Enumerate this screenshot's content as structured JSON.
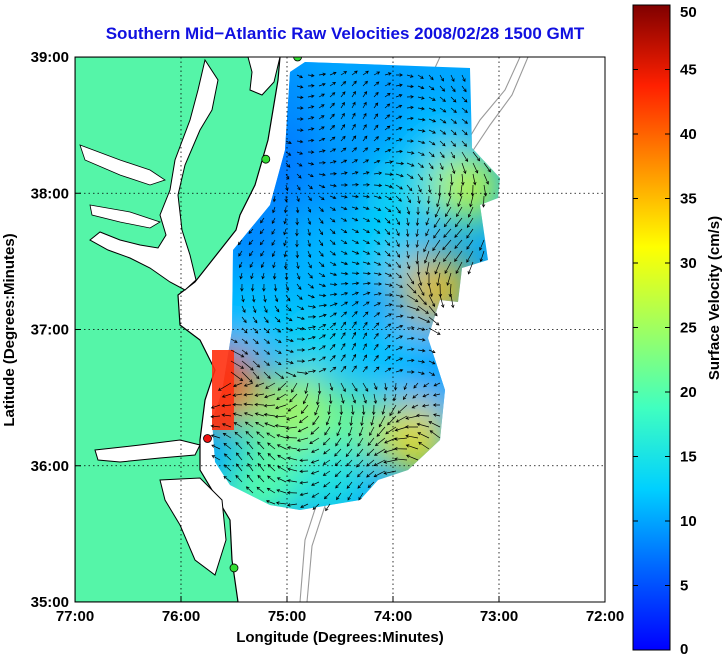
{
  "chart_data": {
    "type": "heatmap",
    "title": "Southern Mid−Atlantic Raw Velocities 2008/02/28 1500 GMT",
    "xlabel": "Longitude (Degrees:Minutes)",
    "ylabel": "Latitude (Degrees:Minutes)",
    "xlim": [
      -77,
      -72
    ],
    "ylim": [
      35,
      39
    ],
    "x_ticks": [
      {
        "value": -77,
        "label": "77:00"
      },
      {
        "value": -76,
        "label": "76:00"
      },
      {
        "value": -75,
        "label": "75:00"
      },
      {
        "value": -74,
        "label": "74:00"
      },
      {
        "value": -73,
        "label": "73:00"
      },
      {
        "value": -72,
        "label": "72:00"
      }
    ],
    "y_ticks": [
      {
        "value": 35,
        "label": "35:00"
      },
      {
        "value": 36,
        "label": "36:00"
      },
      {
        "value": 37,
        "label": "37:00"
      },
      {
        "value": 38,
        "label": "38:00"
      },
      {
        "value": 39,
        "label": "39:00"
      }
    ],
    "grid": true,
    "colorbar": {
      "label": "Surface Velocity (cm/s)",
      "range": [
        0,
        50
      ],
      "ticks": [
        {
          "value": 0,
          "label": "0"
        },
        {
          "value": 5,
          "label": "5"
        },
        {
          "value": 10,
          "label": "10"
        },
        {
          "value": 15,
          "label": "15"
        },
        {
          "value": 20,
          "label": "20"
        },
        {
          "value": 25,
          "label": "25"
        },
        {
          "value": 30,
          "label": "30"
        },
        {
          "value": 35,
          "label": "35"
        },
        {
          "value": 40,
          "label": "40"
        },
        {
          "value": 45,
          "label": "45"
        },
        {
          "value": 50,
          "label": "50"
        }
      ]
    },
    "velocity_field": [
      {
        "lon": -74.9,
        "lat": 38.7,
        "speed": 8
      },
      {
        "lon": -74.5,
        "lat": 38.8,
        "speed": 10
      },
      {
        "lon": -74.0,
        "lat": 38.6,
        "speed": 9
      },
      {
        "lon": -73.6,
        "lat": 38.4,
        "speed": 12
      },
      {
        "lon": -75.0,
        "lat": 38.2,
        "speed": 7
      },
      {
        "lon": -74.5,
        "lat": 38.1,
        "speed": 9
      },
      {
        "lon": -73.9,
        "lat": 38.0,
        "speed": 14
      },
      {
        "lon": -73.3,
        "lat": 38.05,
        "speed": 28
      },
      {
        "lon": -75.3,
        "lat": 37.7,
        "speed": 8
      },
      {
        "lon": -74.7,
        "lat": 37.5,
        "speed": 11
      },
      {
        "lon": -74.1,
        "lat": 37.6,
        "speed": 13
      },
      {
        "lon": -73.6,
        "lat": 37.3,
        "speed": 35
      },
      {
        "lon": -75.3,
        "lat": 37.1,
        "speed": 12
      },
      {
        "lon": -74.7,
        "lat": 36.9,
        "speed": 14
      },
      {
        "lon": -74.0,
        "lat": 36.8,
        "speed": 12
      },
      {
        "lon": -73.6,
        "lat": 36.6,
        "speed": 10
      },
      {
        "lon": -75.5,
        "lat": 36.5,
        "speed": 20
      },
      {
        "lon": -74.9,
        "lat": 36.4,
        "speed": 27
      },
      {
        "lon": -74.4,
        "lat": 36.3,
        "speed": 22
      },
      {
        "lon": -73.8,
        "lat": 36.2,
        "speed": 33
      },
      {
        "lon": -75.6,
        "lat": 36.6,
        "speed": 42
      },
      {
        "lon": -75.1,
        "lat": 36.0,
        "speed": 22
      },
      {
        "lon": -74.6,
        "lat": 35.9,
        "speed": 16
      },
      {
        "lon": -75.3,
        "lat": 35.8,
        "speed": 20
      }
    ],
    "stations": [
      {
        "lon": -74.9,
        "lat": 39.0,
        "kind": "site"
      },
      {
        "lon": -75.2,
        "lat": 38.25,
        "kind": "site"
      },
      {
        "lon": -75.75,
        "lat": 36.2,
        "kind": "site-highlight"
      },
      {
        "lon": -75.5,
        "lat": 35.25,
        "kind": "site"
      }
    ],
    "colors": {
      "land": "#55f5a8",
      "coast": "#000000",
      "title": "#1010e0",
      "bathymetry": "#9a9a9a",
      "station": "#33dd33",
      "station_highlight": "#ee1111"
    }
  }
}
